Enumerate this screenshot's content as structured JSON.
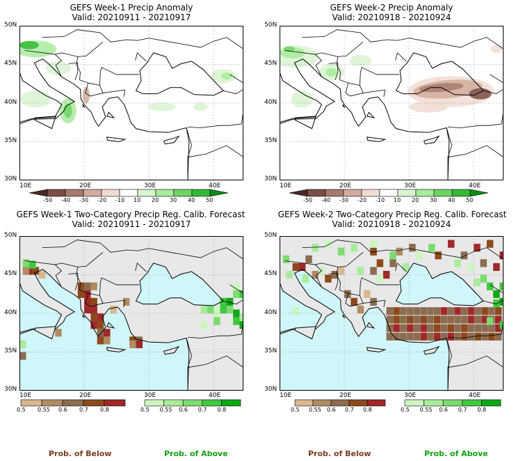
{
  "panels": [
    {
      "title": "GEFS Week-1 Precip Anomaly",
      "valid": "Valid: 20210911 - 20210917",
      "lat_labels": [
        "50N",
        "45N",
        "40N",
        "35N",
        "30N"
      ],
      "lon_labels": [
        "10E",
        "20E",
        "30E",
        "40E"
      ]
    },
    {
      "title": "GEFS Week-2 Precip Anomaly",
      "valid": "Valid: 20210918 - 20210924",
      "lat_labels": [
        "50N",
        "45N",
        "40N",
        "35N",
        "30N"
      ],
      "lon_labels": [
        "10E",
        "20E",
        "30E",
        "40E"
      ]
    },
    {
      "title": "GEFS Week-1 Two-Category Precip Reg. Calib. Forecast",
      "valid": "Valid: 20210911 - 20210917",
      "lat_labels": [
        "50N",
        "45N",
        "40N",
        "35N",
        "30N"
      ],
      "lon_labels": [
        "10E",
        "20E",
        "30E",
        "40E"
      ]
    },
    {
      "title": "GEFS Week-2 Two-Category Precip Reg. Calib. Forecast",
      "valid": "Valid: 20210918 - 20210924",
      "lat_labels": [
        "50N",
        "45N",
        "40N",
        "35N",
        "30N"
      ],
      "lon_labels": [
        "10E",
        "20E",
        "30E",
        "40E"
      ]
    }
  ],
  "anomaly_colorbar": {
    "labels": [
      "-50",
      "-40",
      "-30",
      "-20",
      "-10",
      "10",
      "20",
      "30",
      "40",
      "50"
    ],
    "colors": [
      "#4a2a24",
      "#7a4e44",
      "#a87a6c",
      "#d2ab9c",
      "#f0dcd2",
      "#ffffff",
      "#d8f5d0",
      "#a8eb9c",
      "#6cd664",
      "#34b834",
      "#0a8c14"
    ]
  },
  "prob_below_colorbar": {
    "labels": [
      "0.5",
      "0.55",
      "0.6",
      "0.7",
      "0.8"
    ],
    "colors": [
      "#d8b88c",
      "#b08c64",
      "#8c6c50",
      "#8c4a1c",
      "#a02828"
    ]
  },
  "prob_above_colorbar": {
    "labels": [
      "0.5",
      "0.55",
      "0.6",
      "0.7",
      "0.8"
    ],
    "colors": [
      "#ccf5c0",
      "#a8ec9c",
      "#7cdc70",
      "#40c840",
      "#10a818"
    ]
  },
  "footer": {
    "below_label": "Prob. of Below",
    "above_label": "Prob. of Above",
    "below_color": "#7a3c1c",
    "above_color": "#10a010"
  }
}
